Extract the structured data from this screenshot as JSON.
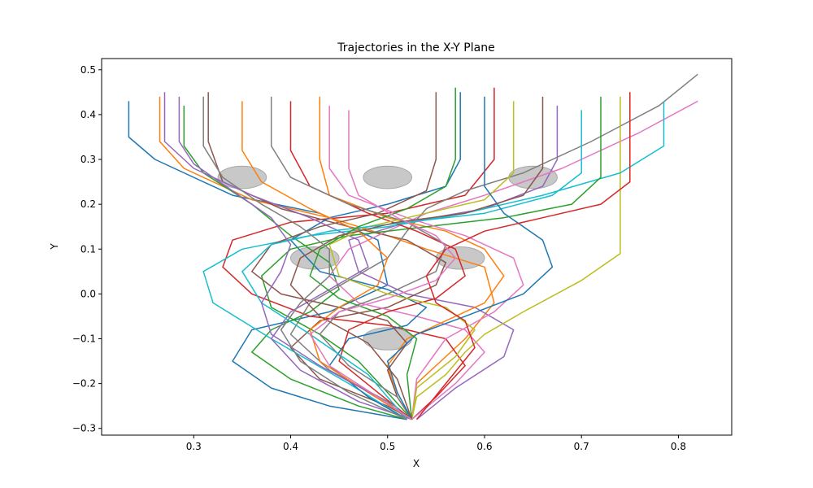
{
  "chart_data": {
    "type": "line",
    "title": "Trajectories in the X-Y Plane",
    "xlabel": "X",
    "ylabel": "Y",
    "xlim": [
      0.205,
      0.855
    ],
    "ylim": [
      -0.315,
      0.525
    ],
    "xticks": [
      0.3,
      0.4,
      0.5,
      0.6,
      0.7,
      0.8
    ],
    "yticks": [
      -0.3,
      -0.2,
      -0.1,
      0.0,
      0.1,
      0.2,
      0.3,
      0.4,
      0.5
    ],
    "xtick_labels": [
      "0.3",
      "0.4",
      "0.5",
      "0.6",
      "0.7",
      "0.8"
    ],
    "ytick_labels": [
      "−0.3",
      "−0.2",
      "−0.1",
      "0.0",
      "0.1",
      "0.2",
      "0.3",
      "0.4",
      "0.5"
    ],
    "grid": false,
    "legend": "none",
    "obstacles": [
      {
        "x": 0.35,
        "y": 0.26,
        "rx": 0.025,
        "ry": 0.025
      },
      {
        "x": 0.5,
        "y": 0.26,
        "rx": 0.025,
        "ry": 0.025
      },
      {
        "x": 0.65,
        "y": 0.26,
        "rx": 0.025,
        "ry": 0.025
      },
      {
        "x": 0.425,
        "y": 0.08,
        "rx": 0.025,
        "ry": 0.025
      },
      {
        "x": 0.575,
        "y": 0.08,
        "rx": 0.025,
        "ry": 0.025
      },
      {
        "x": 0.5,
        "y": -0.1,
        "rx": 0.025,
        "ry": 0.025
      }
    ],
    "obstacle_color": "#c8c8c8",
    "series": [
      {
        "color": "#1f77b4",
        "x": [
          0.233,
          0.233,
          0.26,
          0.34,
          0.43,
          0.49,
          0.5,
          0.44,
          0.36,
          0.34,
          0.38,
          0.44,
          0.52
        ],
        "y": [
          0.43,
          0.35,
          0.3,
          0.22,
          0.18,
          0.12,
          0.02,
          -0.04,
          -0.08,
          -0.15,
          -0.21,
          -0.25,
          -0.28
        ]
      },
      {
        "color": "#ff7f0e",
        "x": [
          0.265,
          0.265,
          0.29,
          0.36,
          0.44,
          0.5,
          0.54,
          0.6,
          0.61,
          0.58,
          0.53,
          0.525
        ],
        "y": [
          0.44,
          0.34,
          0.28,
          0.21,
          0.17,
          0.13,
          0.1,
          0.06,
          -0.02,
          -0.1,
          -0.2,
          -0.28
        ]
      },
      {
        "color": "#2ca02c",
        "x": [
          0.29,
          0.29,
          0.31,
          0.36,
          0.4,
          0.44,
          0.45,
          0.42,
          0.38,
          0.36,
          0.4,
          0.47,
          0.52
        ],
        "y": [
          0.42,
          0.33,
          0.27,
          0.2,
          0.13,
          0.07,
          0.01,
          -0.04,
          -0.08,
          -0.13,
          -0.19,
          -0.25,
          -0.28
        ]
      },
      {
        "color": "#d62728",
        "x": [
          0.61,
          0.61,
          0.58,
          0.5,
          0.4,
          0.34,
          0.33,
          0.36,
          0.42,
          0.5,
          0.56,
          0.58,
          0.55,
          0.525
        ],
        "y": [
          0.46,
          0.3,
          0.22,
          0.18,
          0.16,
          0.12,
          0.06,
          0.0,
          -0.05,
          -0.07,
          -0.1,
          -0.16,
          -0.23,
          -0.28
        ]
      },
      {
        "color": "#9467bd",
        "x": [
          0.675,
          0.675,
          0.66,
          0.6,
          0.52,
          0.46,
          0.47,
          0.52,
          0.59,
          0.63,
          0.62,
          0.57,
          0.53
        ],
        "y": [
          0.42,
          0.3,
          0.24,
          0.19,
          0.16,
          0.12,
          0.05,
          0.0,
          -0.03,
          -0.08,
          -0.14,
          -0.21,
          -0.28
        ]
      },
      {
        "color": "#8c564b",
        "x": [
          0.315,
          0.315,
          0.33,
          0.39,
          0.46,
          0.52,
          0.56,
          0.55,
          0.5,
          0.43,
          0.4,
          0.43,
          0.5,
          0.525
        ],
        "y": [
          0.45,
          0.34,
          0.25,
          0.19,
          0.15,
          0.12,
          0.07,
          0.02,
          -0.03,
          -0.06,
          -0.12,
          -0.19,
          -0.25,
          -0.28
        ]
      },
      {
        "color": "#e377c2",
        "x": [
          0.82,
          0.76,
          0.68,
          0.6,
          0.54,
          0.5,
          0.46,
          0.44,
          0.47,
          0.53,
          0.58,
          0.6,
          0.57,
          0.525
        ],
        "y": [
          0.43,
          0.36,
          0.28,
          0.22,
          0.18,
          0.14,
          0.1,
          0.04,
          -0.02,
          -0.05,
          -0.08,
          -0.13,
          -0.2,
          -0.28
        ]
      },
      {
        "color": "#7f7f7f",
        "x": [
          0.82,
          0.78,
          0.71,
          0.64,
          0.58,
          0.54,
          0.52,
          0.5,
          0.46,
          0.42,
          0.4,
          0.44,
          0.5,
          0.52
        ],
        "y": [
          0.49,
          0.42,
          0.34,
          0.27,
          0.23,
          0.19,
          0.14,
          0.08,
          0.03,
          -0.02,
          -0.09,
          -0.17,
          -0.24,
          -0.28
        ]
      },
      {
        "color": "#bcbd22",
        "x": [
          0.74,
          0.74,
          0.7,
          0.64,
          0.6,
          0.58,
          0.56,
          0.53,
          0.525
        ],
        "y": [
          0.44,
          0.09,
          0.03,
          -0.04,
          -0.09,
          -0.13,
          -0.18,
          -0.23,
          -0.28
        ]
      },
      {
        "color": "#17becf",
        "x": [
          0.785,
          0.785,
          0.74,
          0.66,
          0.58,
          0.5,
          0.42,
          0.35,
          0.31,
          0.32,
          0.38,
          0.46,
          0.52
        ],
        "y": [
          0.43,
          0.33,
          0.27,
          0.22,
          0.18,
          0.15,
          0.13,
          0.1,
          0.05,
          -0.02,
          -0.1,
          -0.2,
          -0.28
        ]
      },
      {
        "color": "#1f77b4",
        "x": [
          0.575,
          0.575,
          0.56,
          0.5,
          0.44,
          0.4,
          0.43,
          0.5,
          0.54,
          0.52,
          0.46,
          0.44,
          0.48,
          0.52
        ],
        "y": [
          0.45,
          0.3,
          0.24,
          0.2,
          0.17,
          0.12,
          0.05,
          0.01,
          -0.03,
          -0.07,
          -0.1,
          -0.16,
          -0.23,
          -0.28
        ]
      },
      {
        "color": "#ff7f0e",
        "x": [
          0.43,
          0.43,
          0.44,
          0.5,
          0.56,
          0.6,
          0.62,
          0.6,
          0.56,
          0.52,
          0.5,
          0.51,
          0.525
        ],
        "y": [
          0.44,
          0.3,
          0.22,
          0.17,
          0.14,
          0.1,
          0.04,
          -0.02,
          -0.06,
          -0.1,
          -0.16,
          -0.23,
          -0.28
        ]
      },
      {
        "color": "#2ca02c",
        "x": [
          0.72,
          0.72,
          0.69,
          0.62,
          0.54,
          0.46,
          0.4,
          0.37,
          0.38,
          0.43,
          0.47,
          0.5,
          0.525
        ],
        "y": [
          0.44,
          0.26,
          0.2,
          0.17,
          0.15,
          0.13,
          0.1,
          0.04,
          -0.03,
          -0.09,
          -0.15,
          -0.22,
          -0.28
        ]
      },
      {
        "color": "#d62728",
        "x": [
          0.4,
          0.4,
          0.42,
          0.48,
          0.53,
          0.57,
          0.58,
          0.55,
          0.5,
          0.46,
          0.45,
          0.49,
          0.525
        ],
        "y": [
          0.43,
          0.32,
          0.24,
          0.18,
          0.14,
          0.1,
          0.04,
          -0.01,
          -0.04,
          -0.08,
          -0.15,
          -0.22,
          -0.28
        ]
      },
      {
        "color": "#9467bd",
        "x": [
          0.27,
          0.27,
          0.3,
          0.36,
          0.42,
          0.47,
          0.48,
          0.44,
          0.4,
          0.38,
          0.41,
          0.47,
          0.525
        ],
        "y": [
          0.45,
          0.34,
          0.28,
          0.22,
          0.17,
          0.12,
          0.06,
          0.01,
          -0.04,
          -0.1,
          -0.17,
          -0.24,
          -0.28
        ]
      },
      {
        "color": "#8c564b",
        "x": [
          0.55,
          0.55,
          0.54,
          0.49,
          0.43,
          0.38,
          0.36,
          0.39,
          0.45,
          0.5,
          0.52,
          0.5,
          0.51,
          0.525
        ],
        "y": [
          0.45,
          0.3,
          0.23,
          0.18,
          0.15,
          0.11,
          0.05,
          0.0,
          -0.03,
          -0.06,
          -0.11,
          -0.17,
          -0.23,
          -0.28
        ]
      },
      {
        "color": "#e377c2",
        "x": [
          0.44,
          0.44,
          0.46,
          0.52,
          0.58,
          0.63,
          0.64,
          0.61,
          0.56,
          0.53,
          0.525
        ],
        "y": [
          0.42,
          0.28,
          0.22,
          0.17,
          0.13,
          0.08,
          0.02,
          -0.04,
          -0.1,
          -0.19,
          -0.28
        ]
      },
      {
        "color": "#7f7f7f",
        "x": [
          0.38,
          0.38,
          0.4,
          0.46,
          0.52,
          0.56,
          0.55,
          0.5,
          0.45,
          0.43,
          0.46,
          0.51,
          0.525
        ],
        "y": [
          0.44,
          0.33,
          0.26,
          0.2,
          0.16,
          0.11,
          0.05,
          0.0,
          -0.04,
          -0.09,
          -0.16,
          -0.23,
          -0.28
        ]
      },
      {
        "color": "#bcbd22",
        "x": [
          0.63,
          0.63,
          0.6,
          0.54,
          0.48,
          0.44,
          0.45,
          0.5,
          0.56,
          0.59,
          0.57,
          0.53,
          0.525
        ],
        "y": [
          0.43,
          0.27,
          0.21,
          0.18,
          0.15,
          0.11,
          0.04,
          0.0,
          -0.03,
          -0.08,
          -0.14,
          -0.21,
          -0.28
        ]
      },
      {
        "color": "#17becf",
        "x": [
          0.7,
          0.7,
          0.67,
          0.6,
          0.52,
          0.44,
          0.38,
          0.35,
          0.37,
          0.42,
          0.48,
          0.52
        ],
        "y": [
          0.41,
          0.27,
          0.22,
          0.18,
          0.16,
          0.14,
          0.11,
          0.05,
          -0.02,
          -0.09,
          -0.18,
          -0.28
        ]
      },
      {
        "color": "#1f77b4",
        "x": [
          0.6,
          0.6,
          0.62,
          0.66,
          0.67,
          0.64,
          0.58,
          0.53,
          0.5,
          0.51,
          0.525
        ],
        "y": [
          0.44,
          0.24,
          0.18,
          0.12,
          0.06,
          0.0,
          -0.05,
          -0.09,
          -0.15,
          -0.22,
          -0.28
        ]
      },
      {
        "color": "#ff7f0e",
        "x": [
          0.35,
          0.35,
          0.37,
          0.42,
          0.47,
          0.5,
          0.49,
          0.45,
          0.42,
          0.43,
          0.48,
          0.525
        ],
        "y": [
          0.43,
          0.32,
          0.25,
          0.19,
          0.14,
          0.08,
          0.02,
          -0.03,
          -0.08,
          -0.15,
          -0.22,
          -0.28
        ]
      },
      {
        "color": "#2ca02c",
        "x": [
          0.57,
          0.57,
          0.56,
          0.52,
          0.47,
          0.43,
          0.42,
          0.45,
          0.5,
          0.53,
          0.52,
          0.525
        ],
        "y": [
          0.46,
          0.3,
          0.24,
          0.19,
          0.15,
          0.1,
          0.04,
          -0.01,
          -0.05,
          -0.1,
          -0.18,
          -0.28
        ]
      },
      {
        "color": "#d62728",
        "x": [
          0.75,
          0.75,
          0.72,
          0.66,
          0.6,
          0.56,
          0.54,
          0.55,
          0.58,
          0.59,
          0.56,
          0.53
        ],
        "y": [
          0.45,
          0.25,
          0.2,
          0.17,
          0.14,
          0.1,
          0.04,
          -0.02,
          -0.06,
          -0.12,
          -0.2,
          -0.28
        ]
      },
      {
        "color": "#9467bd",
        "x": [
          0.285,
          0.285,
          0.3,
          0.34,
          0.38,
          0.4,
          0.39,
          0.37,
          0.38,
          0.43,
          0.49,
          0.525
        ],
        "y": [
          0.44,
          0.34,
          0.29,
          0.23,
          0.17,
          0.11,
          0.05,
          -0.02,
          -0.09,
          -0.16,
          -0.23,
          -0.28
        ]
      },
      {
        "color": "#8c564b",
        "x": [
          0.66,
          0.66,
          0.64,
          0.58,
          0.51,
          0.45,
          0.41,
          0.4,
          0.43,
          0.48,
          0.51,
          0.525
        ],
        "y": [
          0.44,
          0.28,
          0.22,
          0.18,
          0.16,
          0.13,
          0.08,
          0.02,
          -0.05,
          -0.11,
          -0.19,
          -0.28
        ]
      },
      {
        "color": "#e377c2",
        "x": [
          0.46,
          0.46,
          0.47,
          0.51,
          0.55,
          0.57,
          0.55,
          0.5,
          0.45,
          0.42,
          0.44,
          0.49,
          0.525
        ],
        "y": [
          0.41,
          0.28,
          0.22,
          0.17,
          0.13,
          0.08,
          0.03,
          -0.01,
          -0.04,
          -0.09,
          -0.16,
          -0.23,
          -0.28
        ]
      },
      {
        "color": "#7f7f7f",
        "x": [
          0.31,
          0.31,
          0.33,
          0.37,
          0.41,
          0.44,
          0.44,
          0.41,
          0.39,
          0.41,
          0.46,
          0.52
        ],
        "y": [
          0.44,
          0.33,
          0.26,
          0.2,
          0.15,
          0.1,
          0.04,
          -0.02,
          -0.08,
          -0.15,
          -0.22,
          -0.28
        ]
      }
    ]
  }
}
